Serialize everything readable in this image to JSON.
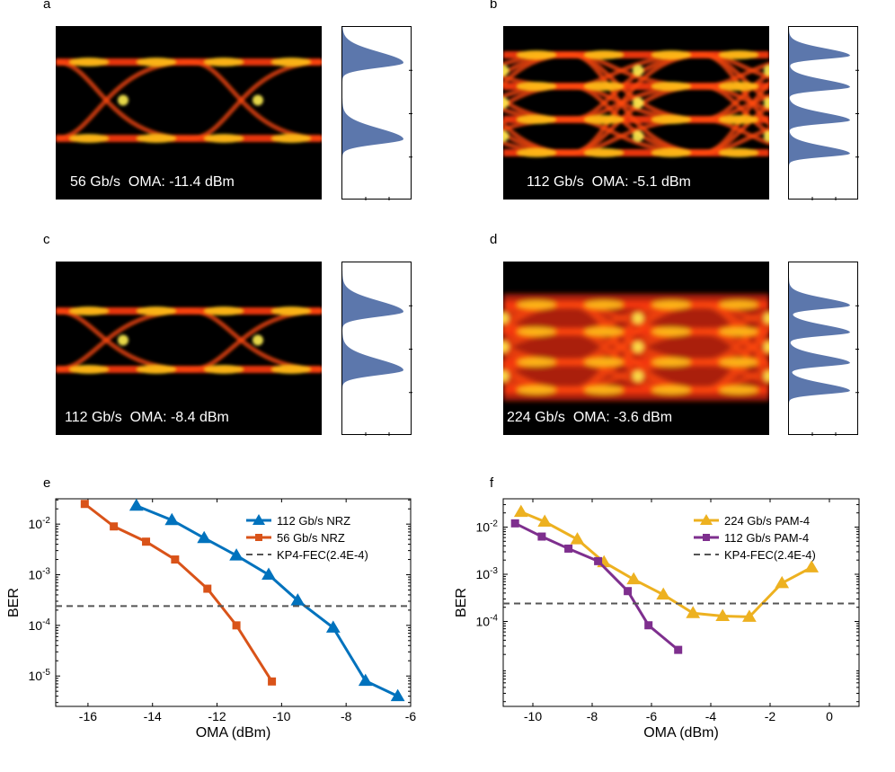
{
  "panels": {
    "a": {
      "letter": "a",
      "caption": "56 Gb/s  OMA: -11.4 dBm",
      "levels": 2
    },
    "b": {
      "letter": "b",
      "caption": "112 Gb/s  OMA: -5.1 dBm",
      "levels": 4
    },
    "c": {
      "letter": "c",
      "caption": "112 Gb/s  OMA: -8.4 dBm",
      "levels": 2
    },
    "d": {
      "letter": "d",
      "caption": "224 Gb/s  OMA: -3.6 dBm",
      "levels": 4
    },
    "e": {
      "letter": "e"
    },
    "f": {
      "letter": "f"
    }
  },
  "colors": {
    "blue": "#0072BD",
    "orange": "#D95319",
    "yellow": "#EDB120",
    "purple": "#7E2F8E",
    "fec": "#555555",
    "hist": "#3F5F9E"
  },
  "chart_data": [
    {
      "type": "line",
      "panel": "e",
      "xlabel": "OMA (dBm)",
      "ylabel": "BER",
      "xlim": [
        -17,
        -6
      ],
      "ylim_log10": [
        -5.6,
        -1.5
      ],
      "yscale": "log",
      "xticks": [
        "-16",
        "-14",
        "-12",
        "-10",
        "-8",
        "-6"
      ],
      "yticks": [
        "10-2",
        "10-3",
        "10-4",
        "10-5"
      ],
      "legend_position": "top-right",
      "series": [
        {
          "name": "112 Gb/s NRZ",
          "marker": "triangle",
          "color": "blue",
          "x": [
            -14.5,
            -13.4,
            -12.4,
            -11.4,
            -10.4,
            -9.5,
            -8.4,
            -7.4,
            -6.4
          ],
          "y": [
            0.023,
            0.012,
            0.0053,
            0.0024,
            0.001,
            0.00031,
            9e-05,
            8e-06,
            4e-06
          ]
        },
        {
          "name": "56 Gb/s NRZ",
          "marker": "square",
          "color": "orange",
          "x": [
            -16.1,
            -15.2,
            -14.2,
            -13.3,
            -12.3,
            -11.4,
            -10.3
          ],
          "y": [
            0.025,
            0.009,
            0.0045,
            0.002,
            0.00053,
            0.0001,
            7.8e-06
          ]
        },
        {
          "name": "KP4-FEC(2.4E-4)",
          "style": "dashed",
          "color": "fec",
          "x": [
            -17,
            -6
          ],
          "y": [
            0.00024,
            0.00024
          ]
        }
      ]
    },
    {
      "type": "line",
      "panel": "f",
      "xlabel": "OMA (dBm)",
      "ylabel": "BER",
      "xlim": [
        -11,
        1
      ],
      "ylim_log10": [
        -5.8,
        -1.4
      ],
      "yscale": "log",
      "xticks": [
        "-10",
        "-8",
        "-6",
        "-4",
        "-2",
        "0"
      ],
      "yticks": [
        "10-2",
        "10-3",
        "10-4"
      ],
      "legend_position": "top-right",
      "series": [
        {
          "name": "224 Gb/s PAM-4",
          "marker": "triangle",
          "color": "yellow",
          "x": [
            -10.4,
            -9.6,
            -8.5,
            -7.6,
            -6.6,
            -5.6,
            -4.6,
            -3.6,
            -2.7,
            -1.6,
            -0.6
          ],
          "y": [
            0.021,
            0.013,
            0.0055,
            0.0018,
            0.00078,
            0.00037,
            0.00015,
            0.00013,
            0.000125,
            0.00065,
            0.0014
          ]
        },
        {
          "name": "112 Gb/s PAM-4",
          "marker": "square",
          "color": "purple",
          "x": [
            -10.6,
            -9.7,
            -8.8,
            -7.8,
            -6.8,
            -6.1,
            -5.1
          ],
          "y": [
            0.012,
            0.0063,
            0.0035,
            0.0019,
            0.00044,
            8.3e-05,
            2.5e-05
          ]
        },
        {
          "name": "KP4-FEC(2.4E-4)",
          "style": "dashed",
          "color": "fec",
          "x": [
            -11,
            1
          ],
          "y": [
            0.00024,
            0.00024
          ]
        }
      ]
    }
  ]
}
